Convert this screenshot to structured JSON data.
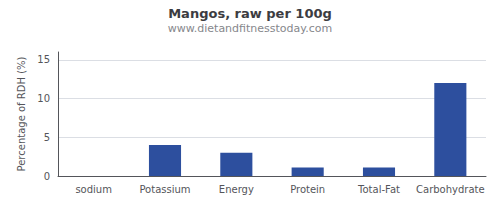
{
  "chart_data": {
    "type": "bar",
    "title": "Mangos, raw per 100g",
    "subtitle": "www.dietandfitnesstoday.com",
    "categories": [
      "sodium",
      "Potassium",
      "Energy",
      "Protein",
      "Total-Fat",
      "Carbohydrate"
    ],
    "values": [
      0,
      4.0,
      3.0,
      1.1,
      1.1,
      12.0
    ],
    "color": "#2d4f9e",
    "ylabel": "Percentage of RDH (%)",
    "ylim": [
      0,
      16
    ],
    "yticks": [
      0,
      5,
      10,
      15
    ],
    "grid": true
  }
}
